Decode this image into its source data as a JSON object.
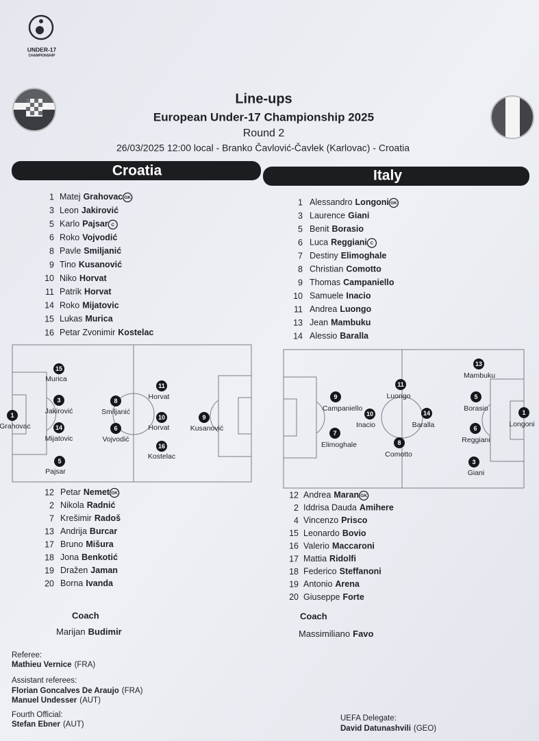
{
  "header": {
    "logo_line1": "UNDER-17",
    "logo_line2": "CHAMPIONSHIP",
    "title": "Line-ups",
    "competition": "European Under-17 Championship 2025",
    "round": "Round 2",
    "match": "26/03/2025 12:00 local - Branko Čavlović-Čavlek (Karlovac) - Croatia"
  },
  "teams": [
    {
      "name": "Croatia",
      "starters": [
        {
          "number": 1,
          "first": "Matej",
          "last": "Grahovac",
          "badge": "GK"
        },
        {
          "number": 3,
          "first": "Leon",
          "last": "Jakirović"
        },
        {
          "number": 5,
          "first": "Karlo",
          "last": "Pajsar",
          "badge": "C"
        },
        {
          "number": 6,
          "first": "Roko",
          "last": "Vojvodić"
        },
        {
          "number": 8,
          "first": "Pavle",
          "last": "Smiljanić"
        },
        {
          "number": 9,
          "first": "Tino",
          "last": "Kusanović"
        },
        {
          "number": 10,
          "first": "Niko",
          "last": "Horvat"
        },
        {
          "number": 11,
          "first": "Patrik",
          "last": "Horvat"
        },
        {
          "number": 14,
          "first": "Roko",
          "last": "Mijatovic"
        },
        {
          "number": 15,
          "first": "Lukas",
          "last": "Murica"
        },
        {
          "number": 16,
          "first": "Petar Zvonimir",
          "last": "Kostelac"
        }
      ],
      "pitch": [
        {
          "number": 1,
          "label": "Grahovac"
        },
        {
          "number": 15,
          "label": "Murica"
        },
        {
          "number": 3,
          "label": "Jakirović"
        },
        {
          "number": 14,
          "label": "Mijatovic"
        },
        {
          "number": 5,
          "label": "Pajsar"
        },
        {
          "number": 8,
          "label": "Smiljanić"
        },
        {
          "number": 6,
          "label": "Vojvodić"
        },
        {
          "number": 11,
          "label": "Horvat"
        },
        {
          "number": 10,
          "label": "Horvat"
        },
        {
          "number": 16,
          "label": "Kostelac"
        },
        {
          "number": 9,
          "label": "Kusanović"
        }
      ],
      "subs": [
        {
          "number": 12,
          "first": "Petar",
          "last": "Nemet",
          "badge": "GK"
        },
        {
          "number": 2,
          "first": "Nikola",
          "last": "Radnić"
        },
        {
          "number": 7,
          "first": "Krešimir",
          "last": "Radoš"
        },
        {
          "number": 13,
          "first": "Andrija",
          "last": "Burcar"
        },
        {
          "number": 17,
          "first": "Bruno",
          "last": "Mišura"
        },
        {
          "number": 18,
          "first": "Jona",
          "last": "Benkotić"
        },
        {
          "number": 19,
          "first": "Dražen",
          "last": "Jaman"
        },
        {
          "number": 20,
          "first": "Borna",
          "last": "Ivanda"
        }
      ],
      "coach_heading": "Coach",
      "coach_first": "Marijan",
      "coach_last": "Budimir"
    },
    {
      "name": "Italy",
      "starters": [
        {
          "number": 1,
          "first": "Alessandro",
          "last": "Longoni",
          "badge": "GK"
        },
        {
          "number": 3,
          "first": "Laurence",
          "last": "Giani"
        },
        {
          "number": 5,
          "first": "Benit",
          "last": "Borasio"
        },
        {
          "number": 6,
          "first": "Luca",
          "last": "Reggiani",
          "badge": "C"
        },
        {
          "number": 7,
          "first": "Destiny",
          "last": "Elimoghale"
        },
        {
          "number": 8,
          "first": "Christian",
          "last": "Comotto"
        },
        {
          "number": 9,
          "first": "Thomas",
          "last": "Campaniello"
        },
        {
          "number": 10,
          "first": "Samuele",
          "last": "Inacio"
        },
        {
          "number": 11,
          "first": "Andrea",
          "last": "Luongo"
        },
        {
          "number": 13,
          "first": "Jean",
          "last": "Mambuku"
        },
        {
          "number": 14,
          "first": "Alessio",
          "last": "Baralla"
        }
      ],
      "pitch": [
        {
          "number": 13,
          "label": "Mambuku"
        },
        {
          "number": 11,
          "label": "Luongo"
        },
        {
          "number": 9,
          "label": "Campaniello"
        },
        {
          "number": 5,
          "label": "Borasio"
        },
        {
          "number": 1,
          "label": "Longoni"
        },
        {
          "number": 10,
          "label": "Inacio"
        },
        {
          "number": 14,
          "label": "Baralla"
        },
        {
          "number": 6,
          "label": "Reggiani"
        },
        {
          "number": 7,
          "label": "Elimoghale"
        },
        {
          "number": 8,
          "label": "Comotto"
        },
        {
          "number": 3,
          "label": "Giani"
        }
      ],
      "subs": [
        {
          "number": 12,
          "first": "Andrea",
          "last": "Maran",
          "badge": "GK"
        },
        {
          "number": 2,
          "first": "Iddrisa Dauda",
          "last": "Amihere"
        },
        {
          "number": 4,
          "first": "Vincenzo",
          "last": "Prisco"
        },
        {
          "number": 15,
          "first": "Leonardo",
          "last": "Bovio"
        },
        {
          "number": 16,
          "first": "Valerio",
          "last": "Maccaroni"
        },
        {
          "number": 17,
          "first": "Mattia",
          "last": "Ridolfi"
        },
        {
          "number": 18,
          "first": "Federico",
          "last": "Steffanoni"
        },
        {
          "number": 19,
          "first": "Antonio",
          "last": "Arena"
        },
        {
          "number": 20,
          "first": "Giuseppe",
          "last": "Forte"
        }
      ],
      "coach_heading": "Coach",
      "coach_first": "Massimiliano",
      "coach_last": "Favo"
    }
  ],
  "officials": {
    "referee_label": "Referee:",
    "referee": {
      "name": "Mathieu Vernice",
      "country": "(FRA)"
    },
    "assistants_label": "Assistant referees:",
    "assistants": [
      {
        "name": "Florian Goncalves De Araujo",
        "country": "(FRA)"
      },
      {
        "name": "Manuel Undesser",
        "country": "(AUT)"
      }
    ],
    "fourth_label": "Fourth Official:",
    "fourth": {
      "name": "Stefan Ebner",
      "country": "(AUT)"
    },
    "delegate_label": "UEFA Delegate:",
    "delegate": {
      "name": "David Datunashvili",
      "country": "(GEO)"
    }
  }
}
